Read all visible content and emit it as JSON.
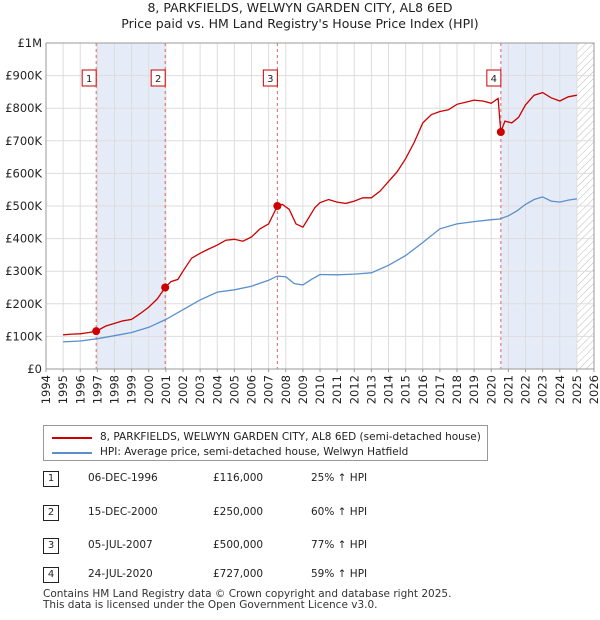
{
  "title_line1": "8, PARKFIELDS, WELWYN GARDEN CITY, AL8 6ED",
  "title_line2": "Price paid vs. HM Land Registry's House Price Index (HPI)",
  "colors": {
    "property": "#cc0000",
    "hpi": "#5b8fcc",
    "shade": "#e6ecf7",
    "marker_line": "#e06666"
  },
  "chart_data": {
    "type": "line",
    "title": "8, PARKFIELDS, WELWYN GARDEN CITY, AL8 6ED — Price paid vs. HM Land Registry's House Price Index (HPI)",
    "xlim": [
      1994,
      2026
    ],
    "ylim": [
      0,
      1000000
    ],
    "x_ticks": [
      1994,
      1995,
      1996,
      1997,
      1998,
      1999,
      2000,
      2001,
      2002,
      2003,
      2004,
      2005,
      2006,
      2007,
      2008,
      2009,
      2010,
      2011,
      2012,
      2013,
      2014,
      2015,
      2016,
      2017,
      2018,
      2019,
      2020,
      2021,
      2022,
      2023,
      2024,
      2025,
      2026
    ],
    "y_ticks": [
      0,
      100000,
      200000,
      300000,
      400000,
      500000,
      600000,
      700000,
      800000,
      900000,
      1000000
    ],
    "y_tick_labels": [
      "£0",
      "£100K",
      "£200K",
      "£300K",
      "£400K",
      "£500K",
      "£600K",
      "£700K",
      "£800K",
      "£900K",
      "£1M"
    ],
    "shaded_ranges": [
      [
        1996.93,
        2000.96
      ],
      [
        2020.56,
        2025.0
      ]
    ],
    "hatched_range": [
      2025.0,
      2026.0
    ],
    "series": [
      {
        "name": "8, PARKFIELDS, WELWYN GARDEN CITY, AL8 6ED (semi-detached house)",
        "color": "#cc0000",
        "x": [
          1995.0,
          1995.5,
          1996.0,
          1996.5,
          1996.93,
          1997.5,
          1998.0,
          1998.5,
          1999.0,
          1999.5,
          2000.0,
          2000.5,
          2000.96,
          2001.3,
          2001.7,
          2002.0,
          2002.5,
          2003.0,
          2003.5,
          2004.0,
          2004.5,
          2005.0,
          2005.5,
          2006.0,
          2006.5,
          2007.0,
          2007.51,
          2007.8,
          2008.2,
          2008.6,
          2009.0,
          2009.3,
          2009.7,
          2010.0,
          2010.5,
          2011.0,
          2011.5,
          2012.0,
          2012.5,
          2013.0,
          2013.5,
          2014.0,
          2014.5,
          2015.0,
          2015.5,
          2016.0,
          2016.5,
          2017.0,
          2017.5,
          2018.0,
          2018.5,
          2019.0,
          2019.5,
          2020.0,
          2020.4,
          2020.56,
          2020.8,
          2021.2,
          2021.6,
          2022.0,
          2022.5,
          2023.0,
          2023.5,
          2024.0,
          2024.5,
          2025.0
        ],
        "y": [
          105000,
          107000,
          108000,
          112000,
          116000,
          132000,
          140000,
          148000,
          152000,
          170000,
          190000,
          215000,
          250000,
          268000,
          275000,
          300000,
          340000,
          355000,
          368000,
          380000,
          395000,
          398000,
          392000,
          405000,
          430000,
          445000,
          500000,
          505000,
          490000,
          445000,
          435000,
          460000,
          495000,
          510000,
          520000,
          512000,
          508000,
          515000,
          525000,
          525000,
          545000,
          575000,
          605000,
          645000,
          695000,
          755000,
          780000,
          790000,
          795000,
          812000,
          818000,
          825000,
          822000,
          815000,
          830000,
          727000,
          760000,
          755000,
          772000,
          810000,
          840000,
          848000,
          832000,
          822000,
          835000,
          840000
        ]
      },
      {
        "name": "HPI: Average price, semi-detached house, Welwyn Hatfield",
        "color": "#5b8fcc",
        "x": [
          1995.0,
          1996.0,
          1997.0,
          1998.0,
          1999.0,
          2000.0,
          2001.0,
          2002.0,
          2003.0,
          2004.0,
          2005.0,
          2006.0,
          2007.0,
          2007.5,
          2008.0,
          2008.5,
          2009.0,
          2009.5,
          2010.0,
          2011.0,
          2012.0,
          2013.0,
          2014.0,
          2015.0,
          2016.0,
          2017.0,
          2018.0,
          2019.0,
          2020.0,
          2020.5,
          2021.0,
          2021.5,
          2022.0,
          2022.5,
          2023.0,
          2023.5,
          2024.0,
          2024.5,
          2025.0
        ],
        "y": [
          83000,
          86000,
          93000,
          102000,
          112000,
          128000,
          152000,
          182000,
          212000,
          236000,
          243000,
          254000,
          272000,
          285000,
          283000,
          262000,
          258000,
          275000,
          290000,
          289000,
          291000,
          295000,
          318000,
          348000,
          388000,
          430000,
          445000,
          452000,
          458000,
          460000,
          470000,
          485000,
          505000,
          520000,
          528000,
          515000,
          512000,
          518000,
          522000
        ]
      }
    ],
    "transactions": [
      {
        "label": "1",
        "x": 1996.93,
        "y": 116000
      },
      {
        "label": "2",
        "x": 2000.96,
        "y": 250000
      },
      {
        "label": "3",
        "x": 2007.51,
        "y": 500000
      },
      {
        "label": "4",
        "x": 2020.56,
        "y": 727000
      }
    ]
  },
  "legend": {
    "property_label": "8, PARKFIELDS, WELWYN GARDEN CITY, AL8 6ED (semi-detached house)",
    "hpi_label": "HPI: Average price, semi-detached house, Welwyn Hatfield"
  },
  "transactions_table": [
    {
      "num": "1",
      "date": "06-DEC-1996",
      "price": "£116,000",
      "hpi": "25% ↑ HPI"
    },
    {
      "num": "2",
      "date": "15-DEC-2000",
      "price": "£250,000",
      "hpi": "60% ↑ HPI"
    },
    {
      "num": "3",
      "date": "05-JUL-2007",
      "price": "£500,000",
      "hpi": "77% ↑ HPI"
    },
    {
      "num": "4",
      "date": "24-JUL-2020",
      "price": "£727,000",
      "hpi": "59% ↑ HPI"
    }
  ],
  "footer": {
    "line1": "Contains HM Land Registry data © Crown copyright and database right 2025.",
    "line2": "This data is licensed under the Open Government Licence v3.0."
  }
}
